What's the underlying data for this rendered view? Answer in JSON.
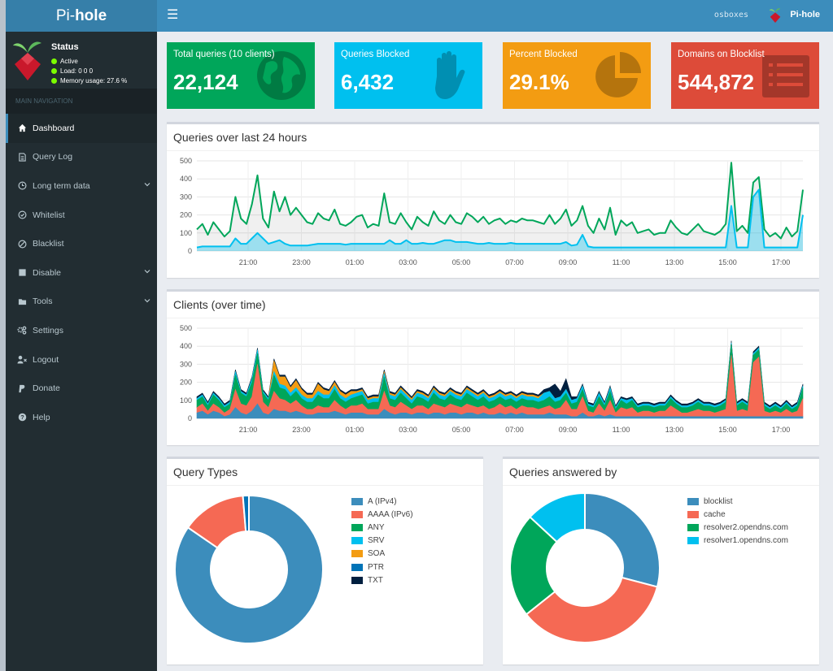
{
  "app": {
    "logo_prefix": "Pi-",
    "logo_bold": "hole"
  },
  "header": {
    "toggle_icon": "hamburger-icon",
    "hostname": "osboxes",
    "user_label": "Pi-hole"
  },
  "sidebar": {
    "status": {
      "title": "Status",
      "active": "Active",
      "load": "Load:  0  0  0",
      "memory": "Memory usage:  27.6 %"
    },
    "nav_header": "MAIN NAVIGATION",
    "items": [
      {
        "label": "Dashboard",
        "icon": "home-icon"
      },
      {
        "label": "Query Log",
        "icon": "file-icon"
      },
      {
        "label": "Long term data",
        "icon": "clock-icon"
      },
      {
        "label": "Whitelist",
        "icon": "check-circle-icon"
      },
      {
        "label": "Blacklist",
        "icon": "ban-icon"
      },
      {
        "label": "Disable",
        "icon": "stop-icon"
      },
      {
        "label": "Tools",
        "icon": "folder-icon"
      },
      {
        "label": "Settings",
        "icon": "gears-icon"
      },
      {
        "label": "Logout",
        "icon": "user-times-icon"
      },
      {
        "label": "Donate",
        "icon": "paypal-icon"
      },
      {
        "label": "Help",
        "icon": "question-circle-icon"
      }
    ]
  },
  "stats": [
    {
      "label": "Total queries (10 clients)",
      "value": "22,124",
      "color": "#00a65a",
      "icon": "globe-icon"
    },
    {
      "label": "Queries Blocked",
      "value": "6,432",
      "color": "#00c0ef",
      "icon": "hand-icon"
    },
    {
      "label": "Percent Blocked",
      "value": "29.1%",
      "color": "#f39c12",
      "icon": "pie-chart-icon"
    },
    {
      "label": "Domains on Blocklist",
      "value": "544,872",
      "color": "#dd4b39",
      "icon": "list-alt-icon"
    }
  ],
  "panels": {
    "queries_title": "Queries over last 24 hours",
    "clients_title": "Clients (over time)",
    "query_types_title": "Query Types",
    "answered_by_title": "Queries answered by"
  },
  "colors": {
    "accent": "#3c8dbc",
    "sidebar": "#222d32",
    "green": "#00a65a",
    "aqua": "#00c0ef",
    "orange": "#f39c12",
    "red": "#dd4b39"
  },
  "chart_data": [
    {
      "type": "area",
      "title": "Queries over last 24 hours",
      "ylim": [
        0,
        500
      ],
      "y_ticks": [
        "0",
        "100",
        "200",
        "300",
        "400",
        "500"
      ],
      "x_ticks": [
        "21:00",
        "23:00",
        "01:00",
        "03:00",
        "05:00",
        "07:00",
        "09:00",
        "11:00",
        "13:00",
        "15:00",
        "17:00"
      ],
      "grid": true,
      "series": [
        {
          "color": "#00a65a",
          "values": [
            120,
            150,
            90,
            160,
            120,
            80,
            110,
            300,
            180,
            150,
            260,
            420,
            180,
            130,
            330,
            220,
            300,
            200,
            240,
            200,
            160,
            150,
            210,
            180,
            170,
            230,
            150,
            140,
            160,
            190,
            200,
            130,
            150,
            140,
            320,
            160,
            150,
            210,
            160,
            120,
            190,
            160,
            140,
            220,
            170,
            150,
            200,
            160,
            150,
            210,
            190,
            160,
            190,
            150,
            170,
            180,
            150,
            170,
            160,
            180,
            170,
            170,
            160,
            150,
            200,
            150,
            180,
            230,
            140,
            170,
            250,
            140,
            100,
            180,
            120,
            240,
            90,
            170,
            140,
            160,
            100,
            110,
            120,
            90,
            100,
            100,
            170,
            130,
            100,
            90,
            120,
            150,
            110,
            100,
            90,
            110,
            150,
            490,
            110,
            140,
            100,
            380,
            410,
            120,
            80,
            100,
            70,
            130,
            80,
            110,
            340
          ]
        },
        {
          "color": "#00c0ef",
          "values": [
            20,
            25,
            25,
            25,
            25,
            25,
            25,
            70,
            40,
            40,
            70,
            100,
            70,
            40,
            50,
            60,
            40,
            30,
            30,
            30,
            30,
            35,
            40,
            40,
            40,
            40,
            40,
            35,
            40,
            40,
            40,
            40,
            40,
            40,
            40,
            60,
            40,
            40,
            60,
            40,
            40,
            45,
            40,
            40,
            50,
            60,
            60,
            50,
            50,
            50,
            45,
            40,
            40,
            45,
            40,
            40,
            40,
            45,
            40,
            40,
            40,
            40,
            40,
            40,
            40,
            40,
            40,
            50,
            30,
            35,
            90,
            25,
            20,
            20,
            20,
            20,
            20,
            20,
            20,
            20,
            20,
            20,
            20,
            20,
            20,
            20,
            20,
            20,
            20,
            20,
            20,
            20,
            20,
            20,
            20,
            20,
            20,
            250,
            20,
            20,
            20,
            300,
            340,
            20,
            20,
            20,
            20,
            20,
            20,
            20,
            200
          ]
        }
      ]
    },
    {
      "type": "area",
      "title": "Clients (over time)",
      "ylim": [
        0,
        500
      ],
      "y_ticks": [
        "0",
        "100",
        "200",
        "300",
        "400",
        "500"
      ],
      "x_ticks": [
        "21:00",
        "23:00",
        "01:00",
        "03:00",
        "05:00",
        "07:00",
        "09:00",
        "11:00",
        "13:00",
        "15:00",
        "17:00"
      ],
      "grid": true,
      "stacked": true,
      "series": [
        {
          "color": "#3c8dbc",
          "values": [
            30,
            40,
            20,
            40,
            30,
            10,
            20,
            60,
            30,
            20,
            40,
            80,
            30,
            20,
            50,
            40,
            40,
            30,
            40,
            30,
            20,
            20,
            30,
            30,
            30,
            40,
            30,
            20,
            30,
            30,
            30,
            20,
            20,
            20,
            50,
            30,
            20,
            30,
            30,
            20,
            30,
            30,
            20,
            30,
            30,
            20,
            30,
            30,
            20,
            30,
            30,
            20,
            30,
            20,
            20,
            30,
            20,
            30,
            20,
            30,
            20,
            20,
            20,
            20,
            30,
            20,
            20,
            20,
            10,
            10,
            30,
            10,
            10,
            20,
            10,
            20,
            10,
            10,
            10,
            10,
            10,
            10,
            10,
            10,
            10,
            10,
            10,
            10,
            10,
            10,
            10,
            10,
            10,
            10,
            10,
            10,
            10,
            10,
            10,
            10,
            10,
            10,
            10,
            10,
            10,
            10,
            10,
            10,
            10,
            10,
            10
          ]
        },
        {
          "color": "#f56954",
          "values": [
            30,
            40,
            20,
            40,
            30,
            20,
            30,
            100,
            50,
            50,
            80,
            220,
            60,
            40,
            100,
            70,
            60,
            50,
            60,
            40,
            30,
            30,
            40,
            30,
            30,
            60,
            40,
            30,
            40,
            40,
            50,
            30,
            30,
            30,
            100,
            40,
            40,
            60,
            40,
            30,
            40,
            40,
            30,
            50,
            40,
            40,
            50,
            40,
            40,
            50,
            40,
            40,
            40,
            30,
            40,
            50,
            40,
            40,
            30,
            40,
            40,
            40,
            30,
            40,
            40,
            30,
            40,
            80,
            40,
            40,
            90,
            30,
            20,
            60,
            30,
            80,
            20,
            50,
            40,
            50,
            20,
            30,
            30,
            20,
            30,
            30,
            60,
            40,
            20,
            20,
            30,
            40,
            30,
            30,
            20,
            30,
            40,
            340,
            30,
            40,
            30,
            300,
            330,
            30,
            20,
            30,
            20,
            40,
            20,
            30,
            100
          ]
        },
        {
          "color": "#00a65a",
          "values": [
            40,
            40,
            30,
            50,
            40,
            30,
            30,
            80,
            60,
            50,
            80,
            60,
            50,
            40,
            90,
            60,
            60,
            40,
            50,
            40,
            40,
            40,
            60,
            50,
            50,
            60,
            40,
            40,
            40,
            50,
            50,
            30,
            40,
            40,
            80,
            40,
            40,
            50,
            40,
            30,
            50,
            40,
            40,
            60,
            40,
            40,
            50,
            40,
            40,
            60,
            50,
            40,
            50,
            40,
            40,
            40,
            40,
            40,
            40,
            40,
            40,
            40,
            40,
            40,
            50,
            40,
            40,
            40,
            30,
            40,
            40,
            30,
            30,
            40,
            30,
            50,
            20,
            40,
            30,
            40,
            30,
            30,
            30,
            30,
            30,
            30,
            40,
            30,
            30,
            30,
            30,
            40,
            30,
            30,
            30,
            30,
            40,
            60,
            30,
            40,
            30,
            40,
            40,
            30,
            20,
            30,
            20,
            30,
            20,
            30,
            60
          ]
        },
        {
          "color": "#00c0ef",
          "values": [
            10,
            10,
            10,
            10,
            10,
            10,
            10,
            20,
            10,
            10,
            20,
            20,
            10,
            10,
            20,
            20,
            20,
            20,
            20,
            20,
            20,
            20,
            20,
            20,
            20,
            20,
            20,
            20,
            20,
            20,
            20,
            20,
            20,
            20,
            20,
            20,
            20,
            20,
            20,
            20,
            20,
            20,
            20,
            20,
            20,
            20,
            20,
            20,
            20,
            20,
            20,
            20,
            20,
            20,
            20,
            20,
            20,
            20,
            20,
            20,
            20,
            20,
            20,
            40,
            30,
            20,
            20,
            20,
            20,
            20,
            20,
            10,
            10,
            20,
            10,
            20,
            10,
            10,
            20,
            10,
            10,
            10,
            10,
            10,
            10,
            10,
            10,
            10,
            10,
            10,
            10,
            10,
            10,
            10,
            10,
            10,
            10,
            10,
            10,
            10,
            10,
            10,
            10,
            10,
            10,
            10,
            10,
            10,
            10,
            10,
            10
          ]
        },
        {
          "color": "#f39c12",
          "values": [
            0,
            0,
            0,
            0,
            0,
            0,
            0,
            0,
            0,
            0,
            0,
            0,
            0,
            0,
            60,
            40,
            50,
            30,
            40,
            30,
            20,
            20,
            40,
            30,
            20,
            20,
            20,
            20,
            20,
            10,
            10,
            10,
            10,
            10,
            10,
            10,
            10,
            10,
            10,
            10,
            10,
            10,
            10,
            10,
            10,
            10,
            10,
            10,
            10,
            10,
            10,
            10,
            10,
            10,
            10,
            10,
            10,
            10,
            10,
            10,
            10,
            10,
            10,
            0,
            0,
            0,
            0,
            0,
            0,
            0,
            0,
            0,
            0,
            0,
            0,
            0,
            0,
            0,
            0,
            0,
            0,
            0,
            0,
            0,
            0,
            0,
            0,
            0,
            0,
            0,
            0,
            0,
            0,
            0,
            0,
            0,
            0,
            0,
            0,
            0,
            0,
            0,
            0,
            0,
            0,
            0,
            0,
            0,
            0,
            0,
            0
          ]
        },
        {
          "color": "#001f3f",
          "values": [
            10,
            10,
            10,
            10,
            10,
            10,
            10,
            10,
            10,
            10,
            10,
            10,
            10,
            10,
            10,
            10,
            10,
            10,
            10,
            10,
            10,
            10,
            10,
            10,
            10,
            10,
            10,
            10,
            10,
            10,
            10,
            10,
            10,
            10,
            10,
            10,
            10,
            10,
            10,
            10,
            10,
            10,
            10,
            10,
            10,
            10,
            10,
            10,
            10,
            10,
            10,
            10,
            10,
            10,
            10,
            10,
            10,
            10,
            10,
            10,
            10,
            10,
            10,
            20,
            20,
            80,
            30,
            60,
            20,
            10,
            10,
            10,
            10,
            10,
            10,
            10,
            10,
            10,
            10,
            10,
            10,
            10,
            10,
            10,
            10,
            10,
            10,
            10,
            10,
            10,
            10,
            10,
            10,
            10,
            10,
            10,
            10,
            10,
            10,
            10,
            10,
            10,
            10,
            10,
            10,
            10,
            10,
            10,
            10,
            10,
            10
          ]
        }
      ]
    },
    {
      "type": "pie",
      "title": "Query Types",
      "labels": [
        "A (IPv4)",
        "AAAA (IPv6)",
        "ANY",
        "SRV",
        "SOA",
        "PTR",
        "TXT"
      ],
      "values": [
        84.6,
        14.1,
        0,
        0,
        0,
        1.3,
        0
      ],
      "colors": [
        "#3c8dbc",
        "#f56954",
        "#00a65a",
        "#00c0ef",
        "#f39c12",
        "#0073b7",
        "#001f3f"
      ]
    },
    {
      "type": "pie",
      "title": "Queries answered by",
      "labels": [
        "blocklist",
        "cache",
        "resolver2.opendns.com",
        "resolver1.opendns.com"
      ],
      "values": [
        29.1,
        35.2,
        22.6,
        13.1
      ],
      "colors": [
        "#3c8dbc",
        "#f56954",
        "#00a65a",
        "#00c0ef"
      ]
    }
  ]
}
